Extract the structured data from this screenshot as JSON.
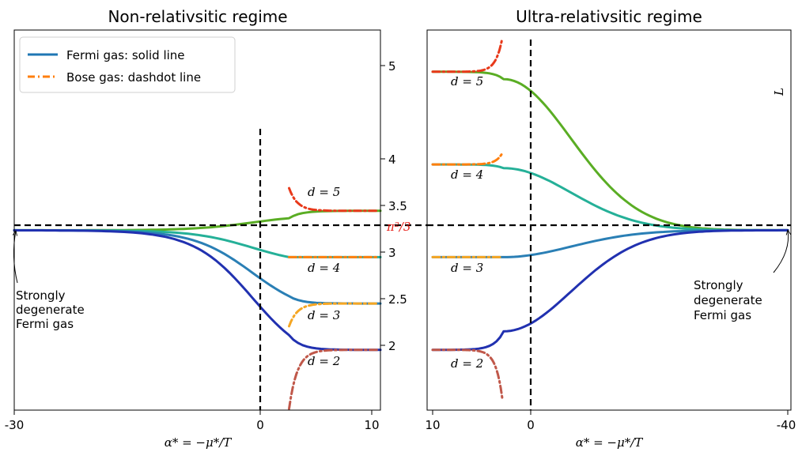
{
  "chart_data": [
    {
      "type": "line",
      "title": "Non-relativsitic regime",
      "xlabel": "α* = −μ*/T",
      "x_ticks": [
        "-30",
        "0",
        "10"
      ],
      "xlim": [
        -30,
        10
      ],
      "ylim": [
        1.35,
        5.45
      ],
      "y_ticks": [
        "2",
        "2.5",
        "3",
        "3.5",
        "4",
        "5"
      ],
      "y_special_tick": "π²/3",
      "y_special_color": "#e8211a",
      "reference_level": 3.2899,
      "legend": {
        "position": "top-left",
        "entries": [
          "Fermi gas: solid line",
          "Bose gas: dashdot line"
        ],
        "colors": [
          "#1f77b4",
          "#ff7f0e"
        ]
      },
      "annotation": {
        "text_lines": [
          "Strongly",
          "degenerate",
          "Fermi gas"
        ]
      },
      "series": [
        {
          "label": "d = 5",
          "fermi_color": "#5aad24",
          "bose_color": "#e8391a",
          "fermi_limit": 3.5,
          "fermi_at_zero": 3.42,
          "bose_limit": 3.5,
          "bose_at_zero": 3.75
        },
        {
          "label": "d = 4",
          "fermi_color": "#25b098",
          "bose_color": "#ff7f0e",
          "fermi_limit": 3.0,
          "fermi_at_zero": 3.0,
          "bose_limit": 3.0,
          "bose_at_zero": 3.0
        },
        {
          "label": "d = 3",
          "fermi_color": "#2a7fb5",
          "bose_color": "#f5a623",
          "fermi_limit": 2.5,
          "fermi_at_zero": 2.58,
          "bose_limit": 2.5,
          "bose_at_zero": 2.25
        },
        {
          "label": "d = 2",
          "fermi_color": "#2131b0",
          "bose_color": "#c0584a",
          "fermi_limit": 2.0,
          "fermi_at_zero": 2.16,
          "bose_limit": 2.0,
          "bose_at_zero": 1.35
        }
      ]
    },
    {
      "type": "line",
      "title": "Ultra-relativsitic regime",
      "xlabel": "α* = −μ*/T",
      "x_ticks": [
        "10",
        "0",
        "-40"
      ],
      "xlim": [
        10,
        -40
      ],
      "ylim": [
        1.35,
        5.45
      ],
      "right_label": "L",
      "reference_level": 3.2899,
      "annotation": {
        "text_lines": [
          "Strongly",
          "degenerate",
          "Fermi gas"
        ]
      },
      "series": [
        {
          "label": "d = 5",
          "fermi_color": "#5aad24",
          "bose_color": "#e8391a",
          "fermi_limit": 5.0,
          "fermi_at_zero": 4.92,
          "bose_limit": 5.0,
          "bose_at_zero": 5.45
        },
        {
          "label": "d = 4",
          "fermi_color": "#25b098",
          "bose_color": "#ff7f0e",
          "fermi_limit": 4.0,
          "fermi_at_zero": 3.96,
          "bose_limit": 4.0,
          "bose_at_zero": 4.15
        },
        {
          "label": "d = 3",
          "fermi_color": "#2a7fb5",
          "bose_color": "#f5a623",
          "fermi_limit": 3.0,
          "fermi_at_zero": 3.0,
          "bose_limit": 3.0,
          "bose_at_zero": 3.0
        },
        {
          "label": "d = 2",
          "fermi_color": "#2131b0",
          "bose_color": "#c0584a",
          "fermi_limit": 2.0,
          "fermi_at_zero": 2.2,
          "bose_limit": 2.0,
          "bose_at_zero": 1.35
        }
      ]
    }
  ]
}
